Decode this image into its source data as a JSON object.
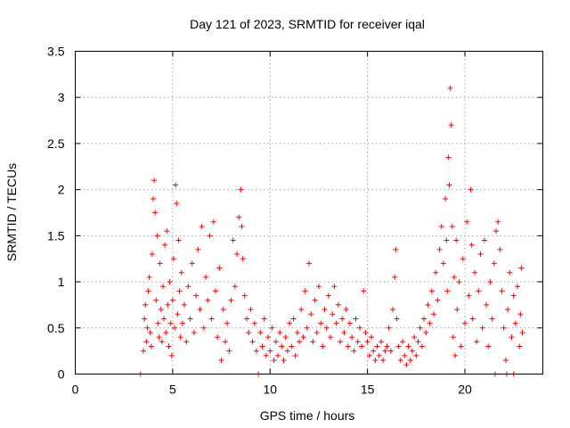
{
  "chart_data": {
    "type": "scatter",
    "title": "Day 121 of 2023, SRMTID for receiver iqal",
    "xlabel": "GPS time / hours",
    "ylabel": "SRMTID / TECUs",
    "xlim": [
      0,
      24
    ],
    "ylim": [
      0,
      3.5
    ],
    "xticks": [
      0,
      5,
      10,
      15,
      20
    ],
    "xtick_labels": [
      "0",
      "5",
      "10",
      "15",
      "20"
    ],
    "yticks": [
      0,
      0.5,
      1,
      1.5,
      2,
      2.5,
      3,
      3.5
    ],
    "ytick_labels": [
      "0",
      "0.5",
      "1",
      "1.5",
      "2",
      "2.5",
      "3",
      "3.5"
    ],
    "grid": true,
    "marker": "+",
    "series": [
      {
        "name": "SRMTID",
        "color": "#ff0000",
        "points": [
          [
            3.5,
            0.25
          ],
          [
            3.55,
            0.6
          ],
          [
            3.6,
            0.75
          ],
          [
            3.65,
            0.35
          ],
          [
            3.7,
            0.5
          ],
          [
            3.75,
            0.9
          ],
          [
            3.8,
            1.05
          ],
          [
            3.85,
            0.45
          ],
          [
            3.9,
            0.3
          ],
          [
            3.95,
            1.3
          ],
          [
            4.0,
            1.9
          ],
          [
            4.05,
            2.1
          ],
          [
            4.1,
            1.75
          ],
          [
            4.15,
            0.8
          ],
          [
            4.2,
            1.5
          ],
          [
            4.25,
            0.55
          ],
          [
            4.3,
            0.4
          ],
          [
            4.35,
            1.2
          ],
          [
            4.4,
            0.7
          ],
          [
            4.45,
            0.35
          ],
          [
            4.5,
            0.95
          ],
          [
            4.55,
            0.6
          ],
          [
            4.6,
            1.4
          ],
          [
            4.65,
            0.45
          ],
          [
            4.7,
            1.55
          ],
          [
            4.75,
            0.75
          ],
          [
            4.8,
            0.3
          ],
          [
            4.85,
            1.0
          ],
          [
            4.9,
            0.55
          ],
          [
            4.95,
            0.2
          ],
          [
            5.0,
            0.8
          ],
          [
            5.05,
            1.25
          ],
          [
            5.1,
            0.5
          ],
          [
            5.15,
            2.05
          ],
          [
            5.2,
            1.85
          ],
          [
            5.25,
            0.65
          ],
          [
            5.3,
            1.45
          ],
          [
            5.35,
            0.9
          ],
          [
            5.4,
            0.4
          ],
          [
            5.45,
            1.1
          ],
          [
            5.5,
            0.55
          ],
          [
            5.6,
            0.75
          ],
          [
            5.7,
            0.35
          ],
          [
            5.8,
            0.95
          ],
          [
            5.9,
            0.6
          ],
          [
            6.0,
            1.2
          ],
          [
            6.1,
            0.45
          ],
          [
            6.2,
            0.85
          ],
          [
            6.3,
            1.35
          ],
          [
            6.4,
            0.7
          ],
          [
            6.5,
            1.6
          ],
          [
            6.6,
            0.5
          ],
          [
            6.7,
            1.05
          ],
          [
            6.8,
            0.8
          ],
          [
            6.9,
            1.5
          ],
          [
            7.0,
            0.6
          ],
          [
            7.1,
            1.65
          ],
          [
            7.2,
            0.9
          ],
          [
            7.3,
            0.4
          ],
          [
            7.4,
            1.15
          ],
          [
            7.5,
            0.15
          ],
          [
            7.6,
            0.7
          ],
          [
            7.7,
            0.35
          ],
          [
            7.8,
            0.55
          ],
          [
            7.9,
            0.25
          ],
          [
            8.0,
            0.8
          ],
          [
            8.1,
            1.45
          ],
          [
            8.2,
            0.95
          ],
          [
            8.3,
            1.3
          ],
          [
            8.4,
            1.7
          ],
          [
            8.5,
            2.0
          ],
          [
            8.55,
            1.6
          ],
          [
            8.6,
            1.25
          ],
          [
            8.7,
            0.85
          ],
          [
            8.8,
            0.6
          ],
          [
            8.9,
            0.45
          ],
          [
            9.0,
            0.7
          ],
          [
            9.1,
            0.35
          ],
          [
            9.2,
            0.55
          ],
          [
            9.3,
            0.25
          ],
          [
            9.4,
            0.0
          ],
          [
            9.5,
            0.45
          ],
          [
            9.6,
            0.3
          ],
          [
            9.7,
            0.6
          ],
          [
            9.8,
            0.2
          ],
          [
            9.9,
            0.4
          ],
          [
            10.0,
            0.25
          ],
          [
            10.1,
            0.5
          ],
          [
            10.2,
            0.15
          ],
          [
            10.3,
            0.35
          ],
          [
            10.4,
            0.2
          ],
          [
            10.5,
            0.45
          ],
          [
            10.6,
            0.3
          ],
          [
            10.7,
            0.15
          ],
          [
            10.8,
            0.4
          ],
          [
            10.9,
            0.25
          ],
          [
            11.0,
            0.55
          ],
          [
            11.1,
            0.3
          ],
          [
            11.2,
            0.6
          ],
          [
            11.3,
            0.2
          ],
          [
            11.4,
            0.45
          ],
          [
            11.5,
            0.35
          ],
          [
            11.6,
            0.7
          ],
          [
            11.7,
            0.4
          ],
          [
            11.8,
            0.9
          ],
          [
            11.9,
            0.5
          ],
          [
            12.0,
            1.2
          ],
          [
            12.1,
            0.65
          ],
          [
            12.2,
            0.35
          ],
          [
            12.3,
            0.8
          ],
          [
            12.4,
            0.45
          ],
          [
            12.5,
            0.95
          ],
          [
            12.6,
            0.55
          ],
          [
            12.7,
            0.3
          ],
          [
            12.8,
            0.7
          ],
          [
            12.9,
            0.5
          ],
          [
            13.0,
            0.85
          ],
          [
            13.1,
            0.4
          ],
          [
            13.2,
            0.65
          ],
          [
            13.3,
            0.95
          ],
          [
            13.4,
            0.55
          ],
          [
            13.5,
            0.75
          ],
          [
            13.6,
            0.35
          ],
          [
            13.7,
            0.6
          ],
          [
            13.8,
            0.45
          ],
          [
            13.9,
            0.7
          ],
          [
            14.0,
            0.3
          ],
          [
            14.1,
            0.55
          ],
          [
            14.2,
            0.4
          ],
          [
            14.3,
            0.25
          ],
          [
            14.4,
            0.6
          ],
          [
            14.5,
            0.35
          ],
          [
            14.6,
            0.5
          ],
          [
            14.7,
            0.3
          ],
          [
            14.8,
            0.9
          ],
          [
            14.9,
            0.45
          ],
          [
            15.0,
            0.35
          ],
          [
            15.1,
            0.2
          ],
          [
            15.2,
            0.4
          ],
          [
            15.3,
            0.25
          ],
          [
            15.4,
            0.15
          ],
          [
            15.5,
            0.3
          ],
          [
            15.6,
            0.2
          ],
          [
            15.7,
            0.35
          ],
          [
            15.8,
            0.15
          ],
          [
            15.9,
            0.25
          ],
          [
            16.0,
            0.3
          ],
          [
            16.1,
            0.5
          ],
          [
            16.2,
            0.25
          ],
          [
            16.3,
            0.7
          ],
          [
            16.4,
            1.05
          ],
          [
            16.45,
            1.35
          ],
          [
            16.5,
            0.6
          ],
          [
            16.6,
            0.3
          ],
          [
            16.7,
            0.15
          ],
          [
            16.8,
            0.35
          ],
          [
            16.9,
            0.2
          ],
          [
            17.0,
            0.1
          ],
          [
            17.1,
            0.3
          ],
          [
            17.2,
            0.15
          ],
          [
            17.3,
            0.25
          ],
          [
            17.4,
            0.4
          ],
          [
            17.5,
            0.2
          ],
          [
            17.6,
            0.35
          ],
          [
            17.7,
            0.5
          ],
          [
            17.8,
            0.3
          ],
          [
            17.9,
            0.6
          ],
          [
            18.0,
            0.45
          ],
          [
            18.1,
            0.75
          ],
          [
            18.2,
            0.55
          ],
          [
            18.3,
            0.9
          ],
          [
            18.4,
            0.65
          ],
          [
            18.5,
            1.1
          ],
          [
            18.6,
            0.8
          ],
          [
            18.7,
            1.35
          ],
          [
            18.8,
            1.6
          ],
          [
            18.9,
            1.2
          ],
          [
            19.0,
            1.9
          ],
          [
            19.05,
            1.45
          ],
          [
            19.1,
            0.9
          ],
          [
            19.15,
            2.35
          ],
          [
            19.2,
            2.05
          ],
          [
            19.25,
            3.1
          ],
          [
            19.3,
            2.7
          ],
          [
            19.35,
            1.6
          ],
          [
            19.4,
            0.4
          ],
          [
            19.45,
            1.05
          ],
          [
            19.5,
            0.2
          ],
          [
            19.55,
            1.45
          ],
          [
            19.6,
            0.7
          ],
          [
            19.7,
            1.0
          ],
          [
            19.8,
            0.3
          ],
          [
            19.9,
            1.25
          ],
          [
            20.0,
            0.55
          ],
          [
            20.1,
            1.65
          ],
          [
            20.2,
            0.85
          ],
          [
            20.3,
            2.0
          ],
          [
            20.35,
            1.4
          ],
          [
            20.4,
            0.6
          ],
          [
            20.5,
            1.1
          ],
          [
            20.6,
            0.35
          ],
          [
            20.7,
            0.9
          ],
          [
            20.8,
            1.3
          ],
          [
            20.9,
            0.5
          ],
          [
            21.0,
            1.45
          ],
          [
            21.1,
            0.75
          ],
          [
            21.2,
            0.3
          ],
          [
            21.3,
            1.0
          ],
          [
            21.4,
            0.6
          ],
          [
            21.5,
            1.2
          ],
          [
            21.6,
            1.55
          ],
          [
            21.7,
            1.65
          ],
          [
            21.8,
            1.35
          ],
          [
            21.9,
            0.9
          ],
          [
            22.0,
            0.5
          ],
          [
            22.1,
            0.15
          ],
          [
            22.2,
            0.7
          ],
          [
            22.3,
            1.1
          ],
          [
            22.4,
            0.4
          ],
          [
            22.5,
            0.85
          ],
          [
            22.6,
            0.55
          ],
          [
            22.7,
            0.95
          ],
          [
            22.8,
            0.3
          ],
          [
            22.85,
            0.65
          ],
          [
            22.9,
            1.15
          ],
          [
            22.95,
            0.45
          ],
          [
            3.35,
            0.0
          ],
          [
            21.55,
            0.0
          ],
          [
            22.15,
            0.0
          ],
          [
            22.5,
            0.0
          ]
        ]
      }
    ]
  }
}
